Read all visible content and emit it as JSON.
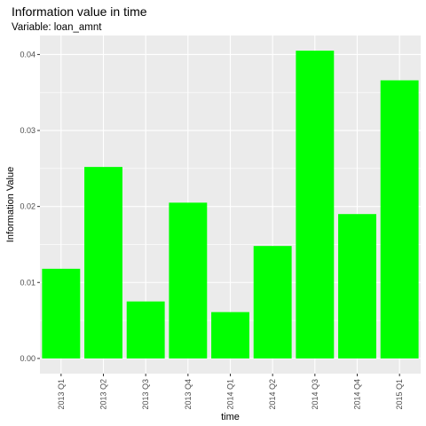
{
  "chart_data": {
    "type": "bar",
    "title": "Information value in time",
    "subtitle": "Variable: loan_amnt",
    "xlabel": "time",
    "ylabel": "Information Value",
    "categories": [
      "2013 Q1",
      "2013 Q2",
      "2013 Q3",
      "2013 Q4",
      "2014 Q1",
      "2014 Q2",
      "2014 Q3",
      "2014 Q4",
      "2015 Q1"
    ],
    "values": [
      0.0118,
      0.0252,
      0.0075,
      0.0205,
      0.0061,
      0.0148,
      0.0405,
      0.019,
      0.0366
    ],
    "ylim": [
      -0.002,
      0.0425
    ],
    "yticks": [
      0.0,
      0.01,
      0.02,
      0.03,
      0.04
    ],
    "ytick_labels": [
      "0.00",
      "0.01",
      "0.02",
      "0.03",
      "0.04"
    ],
    "bar_color": "#00ff00",
    "panel_background": "#ebebeb",
    "grid_color": "#ffffff",
    "grid": true,
    "legend": "none"
  }
}
